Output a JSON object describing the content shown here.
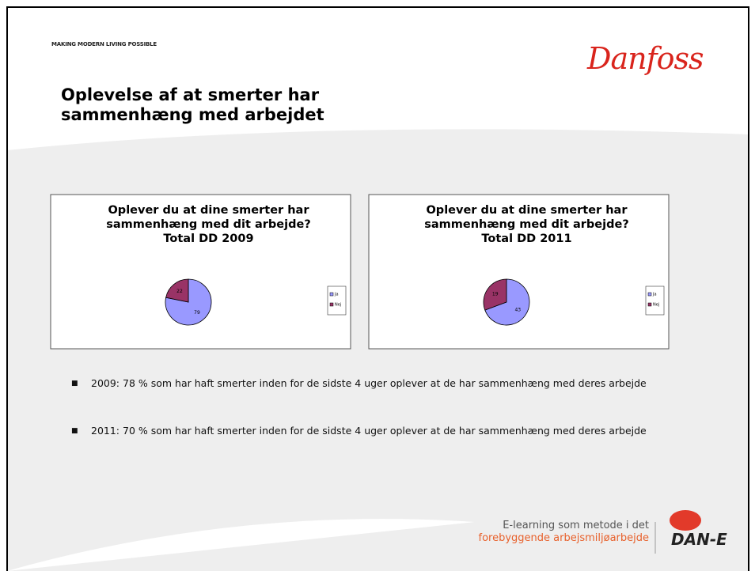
{
  "header": {
    "tagline": "MAKING MODERN LIVING POSSIBLE",
    "logo": "Danfoss",
    "title": "Oplevelse af at smerter har sammenhæng med arbejdet"
  },
  "chart_data": [
    {
      "type": "pie",
      "title": [
        "Oplever du at dine smerter har",
        "sammenhæng med dit arbejde?",
        "Total DD 2009"
      ],
      "categories": [
        "Ja",
        "Nej"
      ],
      "values": [
        79,
        22
      ],
      "colors": [
        "#9999ff",
        "#993366"
      ]
    },
    {
      "type": "pie",
      "title": [
        "Oplever du at dine smerter har",
        "sammenhæng med dit arbejde?",
        "Total DD 2011"
      ],
      "categories": [
        "Ja",
        "Nej"
      ],
      "values": [
        43,
        19
      ],
      "colors": [
        "#9999ff",
        "#993366"
      ]
    }
  ],
  "bullets": [
    "2009: 78 % som har haft smerter inden for de sidste 4 uger oplever at de har sammenhæng med deres arbejde",
    "2011: 70 % som har haft smerter inden for de sidste 4 uger oplever at de har sammenhæng med deres arbejde"
  ],
  "footer": {
    "line1": "E-learning som metode i det",
    "line2": "forebyggende arbejsmiljøarbejde",
    "brand": "DAN-E"
  }
}
